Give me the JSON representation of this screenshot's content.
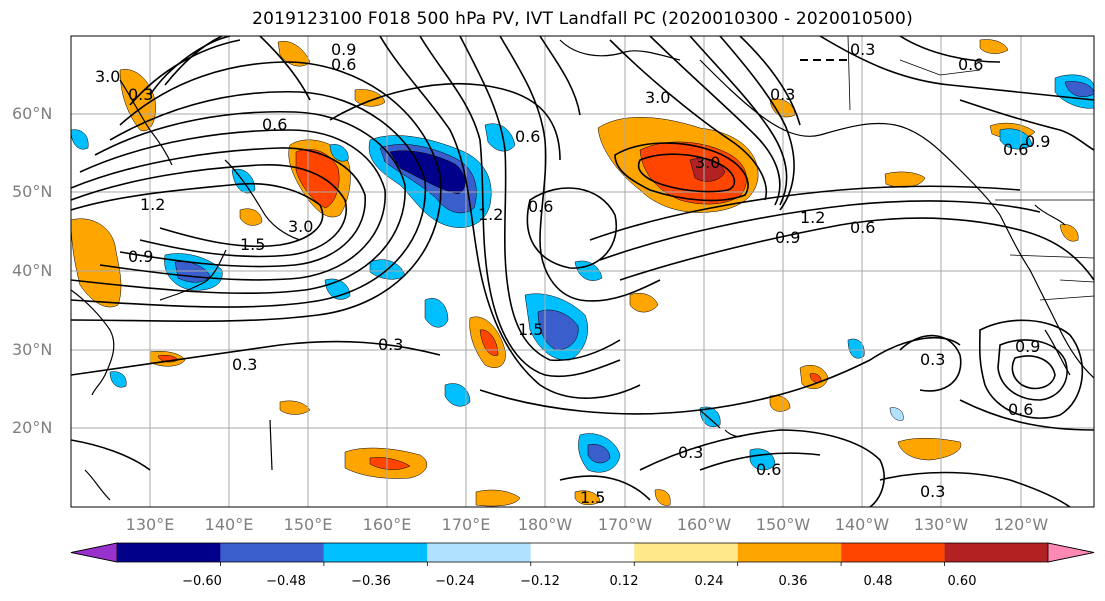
{
  "title": "2019123100 F018 500 hPa PV, IVT Landfall PC (2020010300 - 2020010500)",
  "lat_labels": [
    "60°N",
    "50°N",
    "40°N",
    "30°N",
    "20°N"
  ],
  "lon_labels": [
    "130°E",
    "140°E",
    "150°E",
    "160°E",
    "170°E",
    "180°W",
    "170°W",
    "160°W",
    "150°W",
    "140°W",
    "130°W",
    "120°W"
  ],
  "colorbar": {
    "ticks": [
      "−0.60",
      "−0.48",
      "−0.36",
      "−0.24",
      "−0.12",
      "0.12",
      "0.24",
      "0.36",
      "0.48",
      "0.60"
    ],
    "colors": [
      "#9932cc",
      "#00008b",
      "#3a5fcd",
      "#00bfff",
      "#b0e2ff",
      "#ffffff",
      "#ffe88a",
      "#ffa500",
      "#ff4500",
      "#b22222",
      "#ff88b4"
    ]
  },
  "contour_labels": [
    "0.9",
    "0.6",
    "0.3",
    "3.0",
    "3.0",
    "0.6",
    "1.2",
    "0.9",
    "0.6",
    "1.5",
    "0.6",
    "1.2",
    "0.9",
    "0.6",
    "0.9",
    "0.6",
    "0.3",
    "0.3",
    "0.3",
    "0.6",
    "1.2",
    "0.6",
    "0.3",
    "0.6",
    "0.9",
    "0.3",
    "1.5",
    "0.3",
    "0.3",
    "3.0",
    "1.5",
    "3.0"
  ]
}
